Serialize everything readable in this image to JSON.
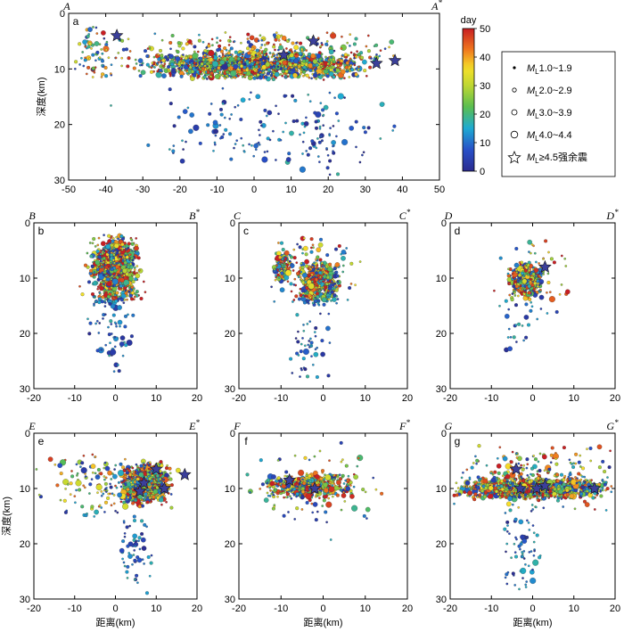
{
  "chart_data": {
    "type": "scatter",
    "colorbar": {
      "title": "day",
      "range": [
        0,
        50
      ],
      "ticks": [
        "0",
        "10",
        "20",
        "30",
        "40",
        "50"
      ]
    },
    "legend": {
      "placement": "right",
      "entries": [
        {
          "pre": "M",
          "sub": "L",
          "post": "1.0~1.9",
          "symbol": "dot"
        },
        {
          "pre": "M",
          "sub": "L",
          "post": "2.0~2.9",
          "symbol": "circle"
        },
        {
          "pre": "M",
          "sub": "L",
          "post": "3.0~3.9",
          "symbol": "circle"
        },
        {
          "pre": "M",
          "sub": "L",
          "post": "4.0~4.4",
          "symbol": "circle"
        },
        {
          "pre": "M",
          "sub": "L",
          "post": "≥4.5强余震",
          "symbol": "star"
        }
      ]
    },
    "ylabel": "深度(km)",
    "xlabel": "距离(km)",
    "panels": [
      {
        "id": "a",
        "start": "A",
        "end": "A",
        "end_sup": "*",
        "xlim": [
          -50,
          50
        ],
        "ylim": [
          0,
          30
        ],
        "xticks": [
          "-50",
          "-40",
          "-30",
          "-20",
          "-10",
          "0",
          "10",
          "20",
          "30",
          "40",
          "50"
        ],
        "yticks": [
          "0",
          "10",
          "20",
          "30"
        ],
        "show_ylabel": true,
        "show_xlabel": false,
        "clusters": [
          {
            "xr": [
              -33,
              32
            ],
            "yr": [
              7,
              12
            ],
            "n": 1600
          },
          {
            "xr": [
              -36,
              42
            ],
            "yr": [
              3,
              11
            ],
            "n": 320
          },
          {
            "xr": [
              -50,
              -33
            ],
            "yr": [
              2,
              14
            ],
            "n": 80
          },
          {
            "xr": [
              -40,
              42
            ],
            "yr": [
              12,
              28
            ],
            "n": 130
          },
          {
            "xr": [
              12,
              24
            ],
            "yr": [
              14,
              30
            ],
            "n": 50
          }
        ],
        "stars": [
          {
            "x": -37,
            "y": 4
          },
          {
            "x": 8,
            "y": 7.5
          },
          {
            "x": 16,
            "y": 5
          },
          {
            "x": 33,
            "y": 9
          },
          {
            "x": 38,
            "y": 8.5
          }
        ]
      },
      {
        "id": "b",
        "start": "B",
        "end": "B",
        "end_sup": "*",
        "xlim": [
          -20,
          20
        ],
        "ylim": [
          0,
          30
        ],
        "xticks": [
          "-20",
          "-10",
          "0",
          "10",
          "20"
        ],
        "yticks": [
          "0",
          "10",
          "20",
          "30"
        ],
        "show_ylabel": false,
        "show_xlabel": false,
        "clusters": [
          {
            "xr": [
              -6,
              6
            ],
            "yr": [
              2,
              15
            ],
            "n": 900
          },
          {
            "xr": [
              -9,
              8
            ],
            "yr": [
              1,
              22
            ],
            "n": 150
          },
          {
            "xr": [
              -5,
              4
            ],
            "yr": [
              15,
              28
            ],
            "n": 35
          }
        ],
        "stars": []
      },
      {
        "id": "c",
        "start": "C",
        "end": "C",
        "end_sup": "*",
        "xlim": [
          -20,
          20
        ],
        "ylim": [
          0,
          30
        ],
        "xticks": [
          "-20",
          "-10",
          "0",
          "10",
          "20"
        ],
        "yticks": [
          "0",
          "10",
          "20",
          "30"
        ],
        "show_ylabel": false,
        "show_xlabel": false,
        "clusters": [
          {
            "xr": [
              -6,
              4
            ],
            "yr": [
              7,
              15
            ],
            "n": 550
          },
          {
            "xr": [
              -12,
              -7
            ],
            "yr": [
              5,
              11
            ],
            "n": 130
          },
          {
            "xr": [
              -14,
              10
            ],
            "yr": [
              1,
              18
            ],
            "n": 120
          },
          {
            "xr": [
              -8,
              2
            ],
            "yr": [
              15,
              29
            ],
            "n": 45
          }
        ],
        "stars": []
      },
      {
        "id": "d",
        "start": "D",
        "end": "D",
        "end_sup": "*",
        "xlim": [
          -20,
          20
        ],
        "ylim": [
          0,
          30
        ],
        "xticks": [
          "-20",
          "-10",
          "0",
          "10",
          "20"
        ],
        "yticks": [
          "0",
          "10",
          "20",
          "30"
        ],
        "show_ylabel": false,
        "show_xlabel": false,
        "clusters": [
          {
            "xr": [
              -6,
              3
            ],
            "yr": [
              7,
              14
            ],
            "n": 400
          },
          {
            "xr": [
              -10,
              10
            ],
            "yr": [
              2,
              19
            ],
            "n": 70
          },
          {
            "xr": [
              -7,
              0
            ],
            "yr": [
              18,
              25
            ],
            "n": 12
          }
        ],
        "stars": [
          {
            "x": 3,
            "y": 8
          }
        ]
      },
      {
        "id": "e",
        "start": "E",
        "end": "E",
        "end_sup": "*",
        "xlim": [
          -20,
          20
        ],
        "ylim": [
          0,
          30
        ],
        "xticks": [
          "-20",
          "-10",
          "0",
          "10",
          "20"
        ],
        "yticks": [
          "0",
          "10",
          "20",
          "30"
        ],
        "show_ylabel": true,
        "show_xlabel": true,
        "clusters": [
          {
            "xr": [
              1,
              14
            ],
            "yr": [
              5,
              13
            ],
            "n": 750
          },
          {
            "xr": [
              -20,
              18
            ],
            "yr": [
              3,
              16
            ],
            "n": 180
          },
          {
            "xr": [
              0,
              10
            ],
            "yr": [
              14,
              30
            ],
            "n": 55
          }
        ],
        "stars": [
          {
            "x": 10,
            "y": 6.5
          },
          {
            "x": 17,
            "y": 7.5
          },
          {
            "x": 7,
            "y": 9
          },
          {
            "x": 6,
            "y": 10.5
          },
          {
            "x": 12,
            "y": 10
          }
        ]
      },
      {
        "id": "f",
        "start": "F",
        "end": "F",
        "end_sup": "*",
        "xlim": [
          -20,
          20
        ],
        "ylim": [
          0,
          30
        ],
        "xticks": [
          "-20",
          "-10",
          "0",
          "10",
          "20"
        ],
        "yticks": [
          "0",
          "10",
          "20",
          "30"
        ],
        "show_ylabel": false,
        "show_xlabel": true,
        "clusters": [
          {
            "xr": [
              -14,
              8
            ],
            "yr": [
              7,
              12
            ],
            "n": 500
          },
          {
            "xr": [
              -20,
              18
            ],
            "yr": [
              0,
              20
            ],
            "n": 90
          }
        ],
        "stars": [
          {
            "x": -8,
            "y": 8.5
          },
          {
            "x": -2,
            "y": 10
          }
        ]
      },
      {
        "id": "g",
        "start": "G",
        "end": "G",
        "end_sup": "*",
        "xlim": [
          -20,
          20
        ],
        "ylim": [
          0,
          30
        ],
        "xticks": [
          "-20",
          "-10",
          "0",
          "10",
          "20"
        ],
        "yticks": [
          "0",
          "10",
          "20",
          "30"
        ],
        "show_ylabel": false,
        "show_xlabel": true,
        "clusters": [
          {
            "xr": [
              -20,
              20
            ],
            "yr": [
              8,
              12
            ],
            "n": 1100
          },
          {
            "xr": [
              -20,
              20
            ],
            "yr": [
              2,
              15
            ],
            "n": 260
          },
          {
            "xr": [
              -9,
              3
            ],
            "yr": [
              14,
              30
            ],
            "n": 65
          }
        ],
        "stars": [
          {
            "x": -4,
            "y": 6.5
          },
          {
            "x": -3,
            "y": 10
          },
          {
            "x": 1,
            "y": 10
          },
          {
            "x": 3,
            "y": 9.5
          },
          {
            "x": 15,
            "y": 10
          }
        ]
      }
    ]
  }
}
